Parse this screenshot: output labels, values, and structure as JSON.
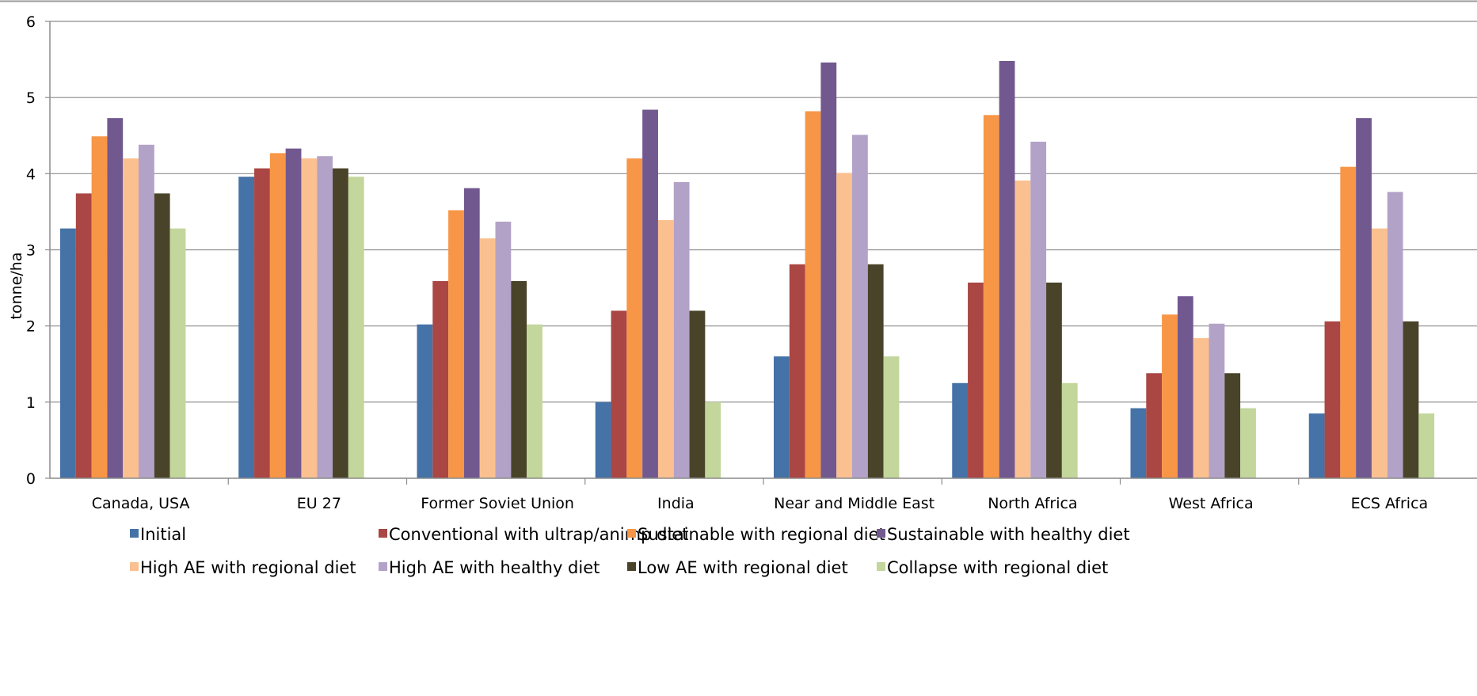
{
  "chart_data": {
    "type": "bar",
    "title": "",
    "xlabel": "",
    "ylabel": "tonne/ha",
    "ylim": [
      0,
      6
    ],
    "yticks": [
      "0",
      "1",
      "2",
      "3",
      "4",
      "5",
      "6"
    ],
    "grid": true,
    "legend_position": "bottom",
    "categories": [
      "Canada, USA",
      "EU 27",
      "Former Soviet Union",
      "India",
      "Near and Middle East",
      "North Africa",
      "West Africa",
      "ECS Africa"
    ],
    "series": [
      {
        "name": "Initial",
        "color": "#4572A7",
        "values": [
          3.28,
          3.96,
          2.02,
          1.0,
          1.6,
          1.25,
          0.92,
          0.85
        ]
      },
      {
        "name": "Conventional with ultrap/animp diet",
        "color": "#AA4643",
        "values": [
          3.74,
          4.07,
          2.59,
          2.2,
          2.81,
          2.57,
          1.38,
          2.06
        ]
      },
      {
        "name": "Sustainable with regional diet",
        "color": "#F79646",
        "values": [
          4.49,
          4.27,
          3.52,
          4.2,
          4.82,
          4.77,
          2.15,
          4.09
        ]
      },
      {
        "name": "Sustainable with healthy diet",
        "color": "#71588F",
        "values": [
          4.73,
          4.33,
          3.81,
          4.84,
          5.46,
          5.48,
          2.39,
          4.73
        ]
      },
      {
        "name": "High AE with regional diet",
        "color": "#FAC090",
        "values": [
          4.2,
          4.2,
          3.15,
          3.39,
          4.01,
          3.91,
          1.84,
          3.28
        ]
      },
      {
        "name": "High AE with healthy diet",
        "color": "#B3A2C7",
        "values": [
          4.38,
          4.23,
          3.37,
          3.89,
          4.51,
          4.42,
          2.03,
          3.76
        ]
      },
      {
        "name": "Low AE with regional diet",
        "color": "#494429",
        "values": [
          3.74,
          4.07,
          2.59,
          2.2,
          2.81,
          2.57,
          1.38,
          2.06
        ]
      },
      {
        "name": "Collapse with regional diet",
        "color": "#C3D69B",
        "values": [
          3.28,
          3.96,
          2.02,
          1.0,
          1.6,
          1.25,
          0.92,
          0.85
        ]
      }
    ]
  }
}
